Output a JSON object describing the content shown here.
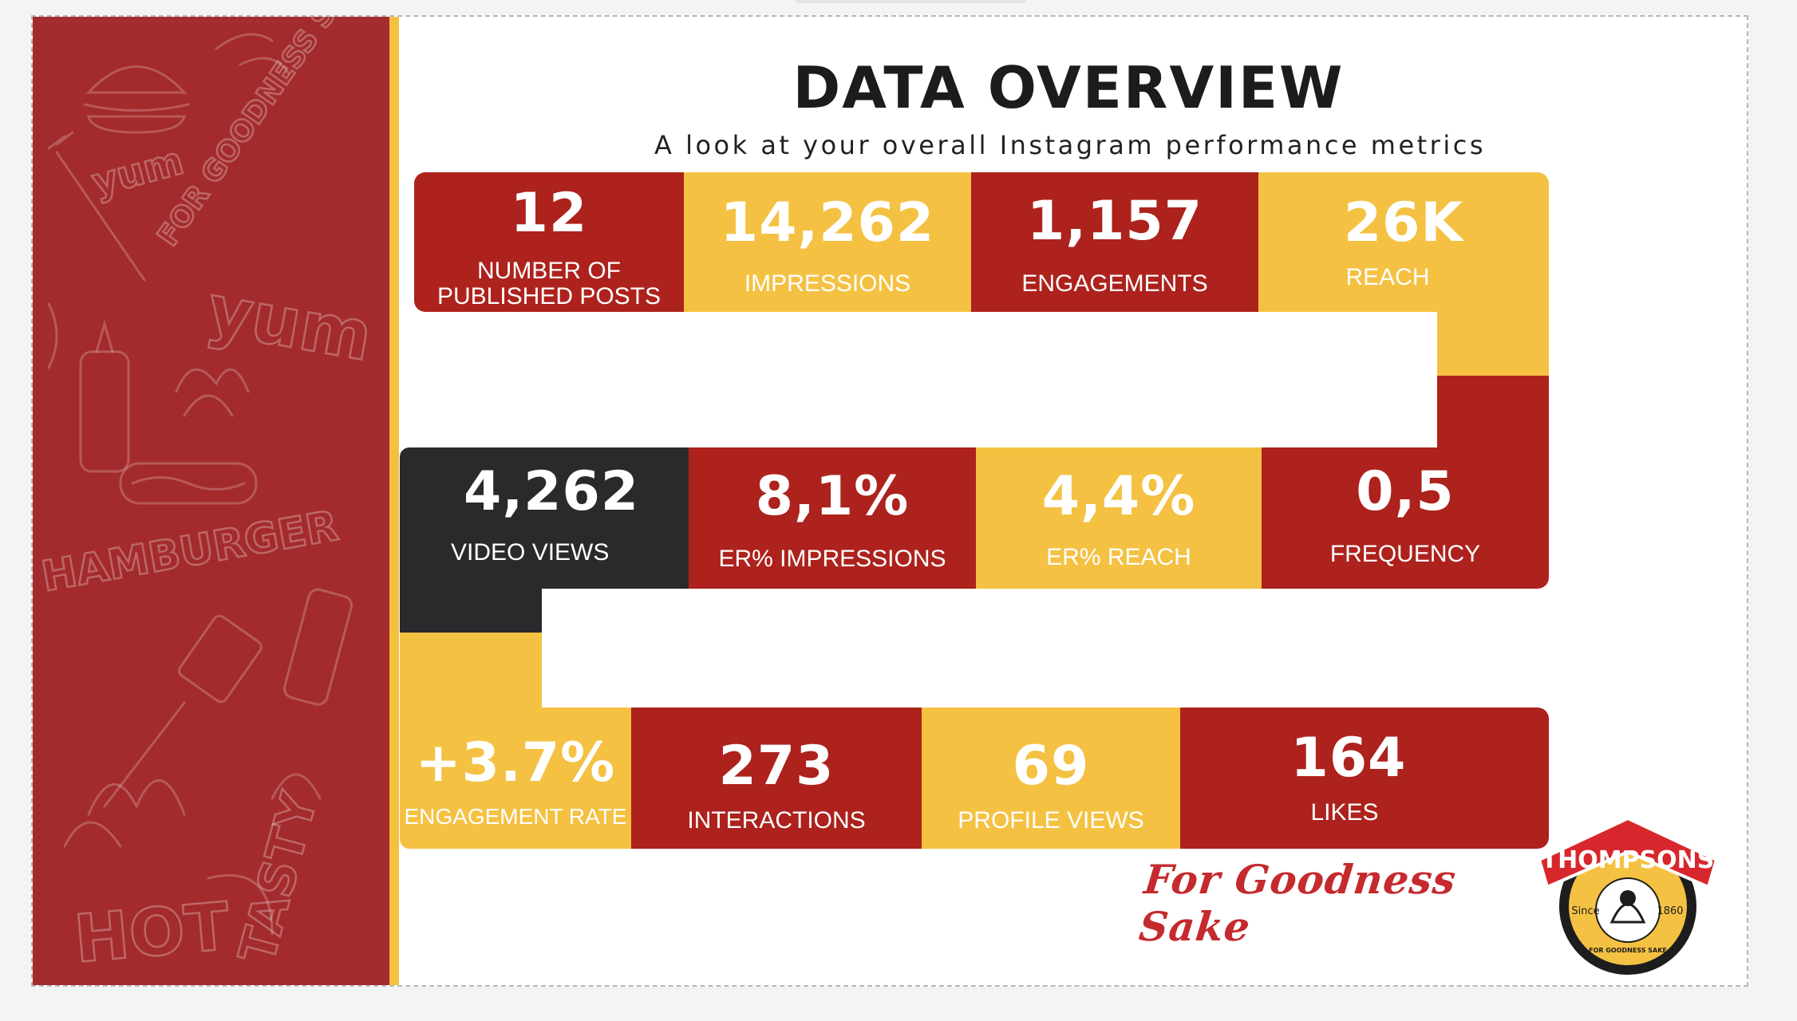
{
  "slide": {
    "title": "DATA OVERVIEW",
    "subtitle": "A look at your overall Instagram performance metrics",
    "colors": {
      "red": "#ad221d",
      "yellow": "#f4c142",
      "dark": "#2a2a2c",
      "panel": "#a32b2d"
    }
  },
  "decor": {
    "yum_1": "yum",
    "yum_2": "yum",
    "for_goodness": "FOR GOODNESS SAKE",
    "hamburger": "HAMBURGER",
    "hot": "HOT",
    "tasty": "TASTY"
  },
  "row1": [
    {
      "value": "12",
      "label_1": "NUMBER OF",
      "label_2": "PUBLISHED POSTS"
    },
    {
      "value": "14,262",
      "label": "IMPRESSIONS"
    },
    {
      "value": "1,157",
      "label": "ENGAGEMENTS"
    },
    {
      "value": "26K",
      "label": "REACH"
    }
  ],
  "row2": [
    {
      "value": "4,262",
      "label": "VIDEO VIEWS"
    },
    {
      "value": "8,1%",
      "label": "ER% IMPRESSIONS"
    },
    {
      "value": "4,4%",
      "label": "ER% REACH"
    },
    {
      "value": "0,5",
      "label": "FREQUENCY"
    }
  ],
  "row3": [
    {
      "value": "+3.7%",
      "label": "ENGAGEMENT RATE"
    },
    {
      "value": "273",
      "label": "INTERACTIONS"
    },
    {
      "value": "69",
      "label": "PROFILE VIEWS"
    },
    {
      "value": "164",
      "label": "LIKES"
    }
  ],
  "brand": {
    "tagline": "For Goodness Sake",
    "logo_name": "THOMPSONS",
    "logo_since": "Since",
    "logo_year": "1860",
    "logo_motto": "FOR GOODNESS SAKE"
  }
}
